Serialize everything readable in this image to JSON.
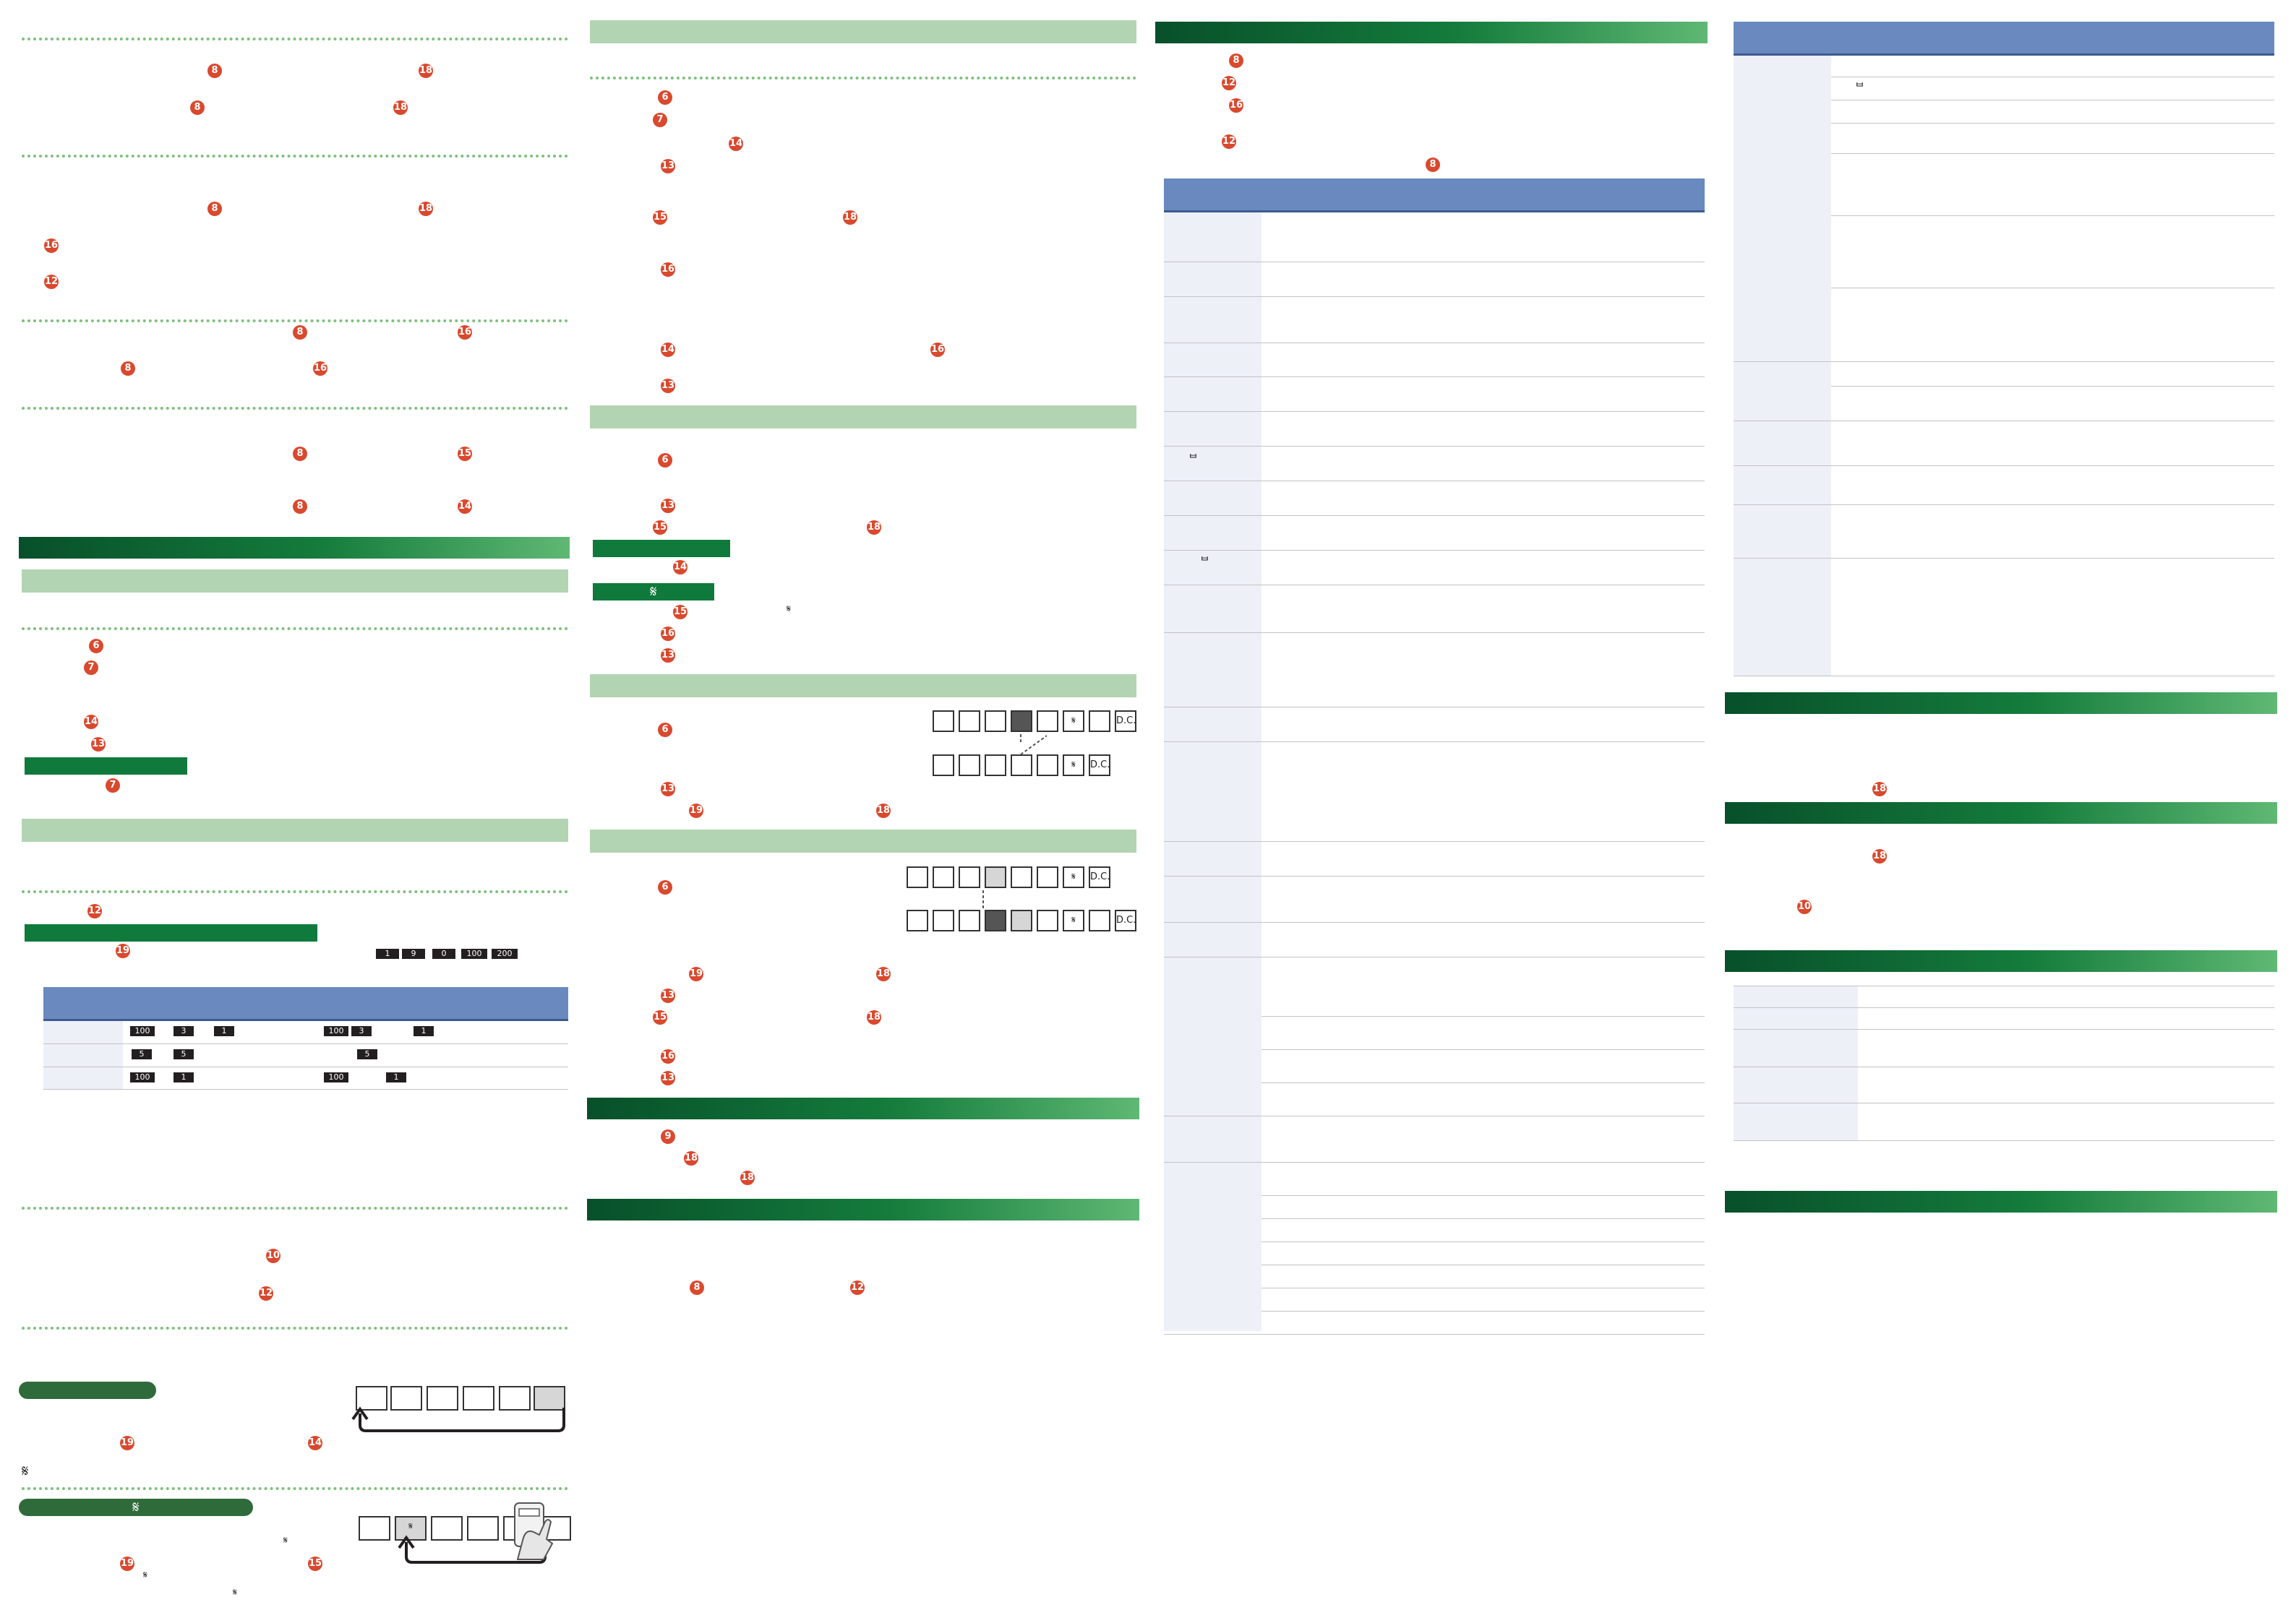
{
  "badges": {
    "b6": "6",
    "b7": "7",
    "b8": "8",
    "b9": "9",
    "b10": "10",
    "b12": "12",
    "b13": "13",
    "b14": "14",
    "b15": "15",
    "b16": "16",
    "b18": "18",
    "b19": "19"
  },
  "segno_symbol": "𝄋",
  "dc_label": "D.C.",
  "sharp_glyph": "ᄇ",
  "keys": {
    "k1": "1",
    "k3": "3",
    "k5": "5",
    "k9": "9",
    "k0": "0",
    "k100": "100",
    "k200": "200"
  }
}
